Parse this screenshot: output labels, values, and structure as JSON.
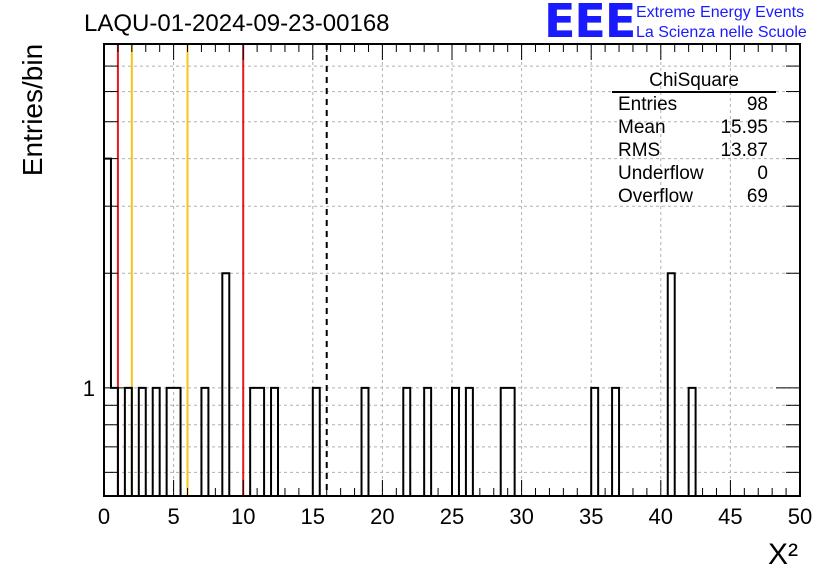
{
  "chart_data": {
    "type": "histogram",
    "title": "LAQU-01-2024-09-23-00168",
    "xlabel": "X²",
    "ylabel": "Entries/bin",
    "log_y": true,
    "xlim": [
      0,
      50
    ],
    "ylim": [
      0.52,
      8
    ],
    "bin_width": 0.5,
    "x_ticks": [
      "0",
      "5",
      "10",
      "15",
      "20",
      "25",
      "30",
      "35",
      "40",
      "45",
      "50"
    ],
    "y_tick_labels": [
      "1"
    ],
    "grid": true,
    "bins": [
      {
        "x": 0.0,
        "count": 4
      },
      {
        "x": 0.5,
        "count": 1
      },
      {
        "x": 1.5,
        "count": 1
      },
      {
        "x": 2.5,
        "count": 1
      },
      {
        "x": 3.5,
        "count": 1
      },
      {
        "x": 4.5,
        "count": 1
      },
      {
        "x": 5.0,
        "count": 1
      },
      {
        "x": 7.0,
        "count": 1
      },
      {
        "x": 8.5,
        "count": 2
      },
      {
        "x": 10.5,
        "count": 1
      },
      {
        "x": 11.0,
        "count": 1
      },
      {
        "x": 12.0,
        "count": 1
      },
      {
        "x": 15.0,
        "count": 1
      },
      {
        "x": 18.5,
        "count": 1
      },
      {
        "x": 21.5,
        "count": 1
      },
      {
        "x": 23.0,
        "count": 1
      },
      {
        "x": 25.0,
        "count": 1
      },
      {
        "x": 26.0,
        "count": 1
      },
      {
        "x": 28.5,
        "count": 1
      },
      {
        "x": 29.0,
        "count": 1
      },
      {
        "x": 35.0,
        "count": 1
      },
      {
        "x": 36.5,
        "count": 1
      },
      {
        "x": 40.5,
        "count": 2
      },
      {
        "x": 42.0,
        "count": 1
      }
    ],
    "vertical_lines": [
      {
        "x": 1,
        "color": "#e8191e",
        "style": "solid"
      },
      {
        "x": 2,
        "color": "#f5c518",
        "style": "solid"
      },
      {
        "x": 6,
        "color": "#f5c518",
        "style": "solid"
      },
      {
        "x": 10,
        "color": "#e8191e",
        "style": "solid"
      },
      {
        "x": 16,
        "color": "#000000",
        "style": "dashed"
      }
    ],
    "stats_box": {
      "title": "ChiSquare",
      "rows": [
        {
          "label": "Entries",
          "value": "98"
        },
        {
          "label": "Mean",
          "value": "15.95"
        },
        {
          "label": "RMS",
          "value": "13.87"
        },
        {
          "label": "Underflow",
          "value": "0"
        },
        {
          "label": "Overflow",
          "value": "69"
        }
      ]
    }
  },
  "logo": {
    "mark": "EEE",
    "line1": "Extreme Energy Events",
    "line2": "La Scienza nelle Scuole"
  }
}
